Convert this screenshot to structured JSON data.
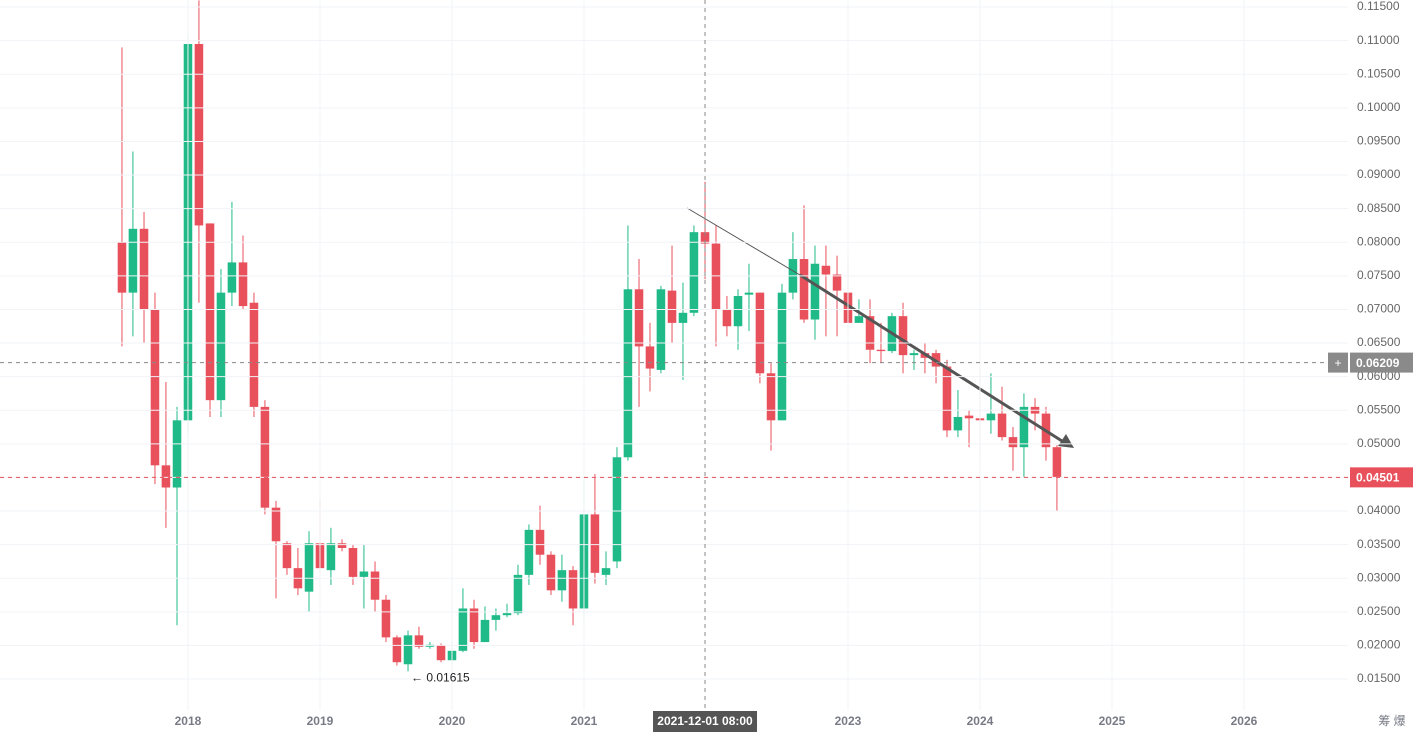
{
  "chart_data": {
    "type": "candlestick",
    "x": [
      2017.5,
      2017.583,
      2017.667,
      2017.75,
      2017.833,
      2017.917,
      2018,
      2018.083,
      2018.167,
      2018.25,
      2018.333,
      2018.417,
      2018.5,
      2018.583,
      2018.667,
      2018.75,
      2018.833,
      2018.917,
      2019,
      2019.083,
      2019.167,
      2019.25,
      2019.333,
      2019.417,
      2019.5,
      2019.583,
      2019.667,
      2019.75,
      2019.833,
      2019.917,
      2020,
      2020.083,
      2020.167,
      2020.25,
      2020.333,
      2020.417,
      2020.5,
      2020.583,
      2020.667,
      2020.75,
      2020.833,
      2020.917,
      2021,
      2021.083,
      2021.167,
      2021.25,
      2021.333,
      2021.417,
      2021.5,
      2021.583,
      2021.667,
      2021.75,
      2021.833,
      2021.917,
      2022,
      2022.083,
      2022.167,
      2022.25,
      2022.333,
      2022.417,
      2022.5,
      2022.583,
      2022.667,
      2022.75,
      2022.833,
      2022.917,
      2023,
      2023.083,
      2023.167,
      2023.25,
      2023.333,
      2023.417,
      2023.5,
      2023.583,
      2023.667,
      2023.75,
      2023.833,
      2023.917,
      2024,
      2024.083,
      2024.167,
      2024.25,
      2024.333,
      2024.417,
      2024.5,
      2024.583
    ],
    "open": [
      0.08,
      0.0725,
      0.082,
      0.07,
      0.0468,
      0.0435,
      0.0535,
      0.1095,
      0.0828,
      0.0565,
      0.0725,
      0.077,
      0.071,
      0.0555,
      0.0405,
      0.0352,
      0.0315,
      0.028,
      0.0352,
      0.0312,
      0.0352,
      0.0345,
      0.0302,
      0.031,
      0.0268,
      0.0212,
      0.0172,
      0.0215,
      0.0198,
      0.02,
      0.0178,
      0.0192,
      0.0255,
      0.0205,
      0.0238,
      0.0245,
      0.0248,
      0.0305,
      0.0372,
      0.0335,
      0.0282,
      0.0312,
      0.0255,
      0.0395,
      0.0305,
      0.0325,
      0.048,
      0.073,
      0.0645,
      0.061,
      0.0728,
      0.068,
      0.0695,
      0.0815,
      0.0798,
      0.07,
      0.0675,
      0.0722,
      0.0725,
      0.0605,
      0.0535,
      0.0725,
      0.0775,
      0.0685,
      0.0765,
      0.0752,
      0.0725,
      0.068,
      0.069,
      0.064,
      0.0638,
      0.069,
      0.0632,
      0.0635,
      0.0635,
      0.0615,
      0.052,
      0.0542,
      0.0538,
      0.0535,
      0.0545,
      0.051,
      0.0495,
      0.0555,
      0.0545,
      0.0495
    ],
    "high": [
      0.109,
      0.0935,
      0.0845,
      0.0725,
      0.0592,
      0.0555,
      0.111,
      0.116,
      0.0828,
      0.076,
      0.086,
      0.081,
      0.0725,
      0.0565,
      0.0415,
      0.0355,
      0.0345,
      0.037,
      0.0418,
      0.0375,
      0.0358,
      0.035,
      0.035,
      0.0325,
      0.0275,
      0.0215,
      0.0222,
      0.0228,
      0.0205,
      0.0203,
      0.0205,
      0.0285,
      0.0268,
      0.0258,
      0.0255,
      0.0262,
      0.032,
      0.038,
      0.0408,
      0.034,
      0.0335,
      0.0318,
      0.045,
      0.0455,
      0.034,
      0.0495,
      0.0825,
      0.0775,
      0.068,
      0.0735,
      0.0795,
      0.074,
      0.0825,
      0.089,
      0.0825,
      0.072,
      0.073,
      0.0768,
      0.0725,
      0.062,
      0.0738,
      0.0815,
      0.0855,
      0.0795,
      0.0795,
      0.078,
      0.0775,
      0.0715,
      0.0715,
      0.068,
      0.0695,
      0.071,
      0.064,
      0.065,
      0.064,
      0.0625,
      0.058,
      0.055,
      0.061,
      0.0605,
      0.0585,
      0.0525,
      0.0575,
      0.0568,
      0.0555,
      0.0498
    ],
    "low": [
      0.0645,
      0.066,
      0.065,
      0.044,
      0.0375,
      0.023,
      0.0515,
      0.071,
      0.054,
      0.054,
      0.0705,
      0.07,
      0.054,
      0.0395,
      0.027,
      0.0305,
      0.0275,
      0.025,
      0.031,
      0.029,
      0.034,
      0.029,
      0.0255,
      0.025,
      0.0205,
      0.017,
      0.01615,
      0.0195,
      0.0195,
      0.0175,
      0.0172,
      0.019,
      0.0195,
      0.0205,
      0.0222,
      0.0242,
      0.0245,
      0.029,
      0.032,
      0.0275,
      0.0265,
      0.023,
      0.0235,
      0.0292,
      0.029,
      0.0315,
      0.0475,
      0.0555,
      0.0578,
      0.0605,
      0.065,
      0.0595,
      0.069,
      0.0745,
      0.0645,
      0.066,
      0.064,
      0.0668,
      0.059,
      0.049,
      0.0535,
      0.0715,
      0.068,
      0.0655,
      0.066,
      0.066,
      0.0675,
      0.068,
      0.062,
      0.062,
      0.0635,
      0.0605,
      0.061,
      0.0605,
      0.059,
      0.051,
      0.051,
      0.0495,
      0.048,
      0.0515,
      0.0505,
      0.046,
      0.045,
      0.052,
      0.0475,
      0.04
    ],
    "close": [
      0.0725,
      0.082,
      0.07,
      0.0468,
      0.0435,
      0.0535,
      0.1095,
      0.0825,
      0.0565,
      0.0725,
      0.077,
      0.0705,
      0.0555,
      0.0405,
      0.0355,
      0.0315,
      0.0285,
      0.0352,
      0.0315,
      0.0352,
      0.0345,
      0.0302,
      0.031,
      0.0268,
      0.0212,
      0.0175,
      0.0215,
      0.0198,
      0.0201,
      0.0178,
      0.0192,
      0.0255,
      0.0205,
      0.0238,
      0.0245,
      0.0248,
      0.0305,
      0.0372,
      0.0335,
      0.0282,
      0.0312,
      0.0255,
      0.0395,
      0.0308,
      0.0315,
      0.048,
      0.073,
      0.0645,
      0.0612,
      0.073,
      0.068,
      0.0695,
      0.0815,
      0.0798,
      0.07,
      0.0675,
      0.072,
      0.0725,
      0.0605,
      0.0535,
      0.0725,
      0.0775,
      0.0685,
      0.0768,
      0.0752,
      0.0728,
      0.068,
      0.069,
      0.064,
      0.0638,
      0.069,
      0.0632,
      0.0635,
      0.0628,
      0.0615,
      0.052,
      0.054,
      0.0538,
      0.0535,
      0.0545,
      0.051,
      0.0495,
      0.0555,
      0.0545,
      0.0495,
      0.04501
    ],
    "up_color": "#1fba88",
    "down_color": "#e8505b",
    "xlim": [
      2016.576,
      2026.788
    ],
    "xticks": [
      2018,
      2019,
      2020,
      2021,
      2023,
      2024,
      2025,
      2026
    ],
    "ylim": [
      0.01039,
      0.11605
    ],
    "yticks": [
      {
        "value": 0.015,
        "label": "0.01500"
      },
      {
        "value": 0.02,
        "label": "0.02000"
      },
      {
        "value": 0.025,
        "label": "0.02500"
      },
      {
        "value": 0.03,
        "label": "0.03000"
      },
      {
        "value": 0.035,
        "label": "0.03500"
      },
      {
        "value": 0.04,
        "label": "0.04000"
      },
      {
        "value": 0.045,
        "label": "0.04500"
      },
      {
        "value": 0.05,
        "label": "0.05000"
      },
      {
        "value": 0.055,
        "label": "0.05500"
      },
      {
        "value": 0.06,
        "label": "0.06000"
      },
      {
        "value": 0.065,
        "label": "0.06500"
      },
      {
        "value": 0.07,
        "label": "0.07000"
      },
      {
        "value": 0.075,
        "label": "0.07500"
      },
      {
        "value": 0.08,
        "label": "0.08000"
      },
      {
        "value": 0.085,
        "label": "0.08500"
      },
      {
        "value": 0.09,
        "label": "0.09000"
      },
      {
        "value": 0.095,
        "label": "0.09500"
      },
      {
        "value": 0.1,
        "label": "0.10000"
      },
      {
        "value": 0.105,
        "label": "0.10500"
      },
      {
        "value": 0.11,
        "label": "0.11000"
      },
      {
        "value": 0.115,
        "label": "0.11500"
      }
    ],
    "grid": true,
    "crosshair": {
      "x": 2021.917,
      "x_label": "2021-12-01 08:00",
      "price": 0.06209
    },
    "last_price": 0.04501,
    "low_annotation": {
      "x": 2019.667,
      "value": 0.01615,
      "label": "← 0.01615"
    },
    "corner_text": "筹 爆"
  }
}
